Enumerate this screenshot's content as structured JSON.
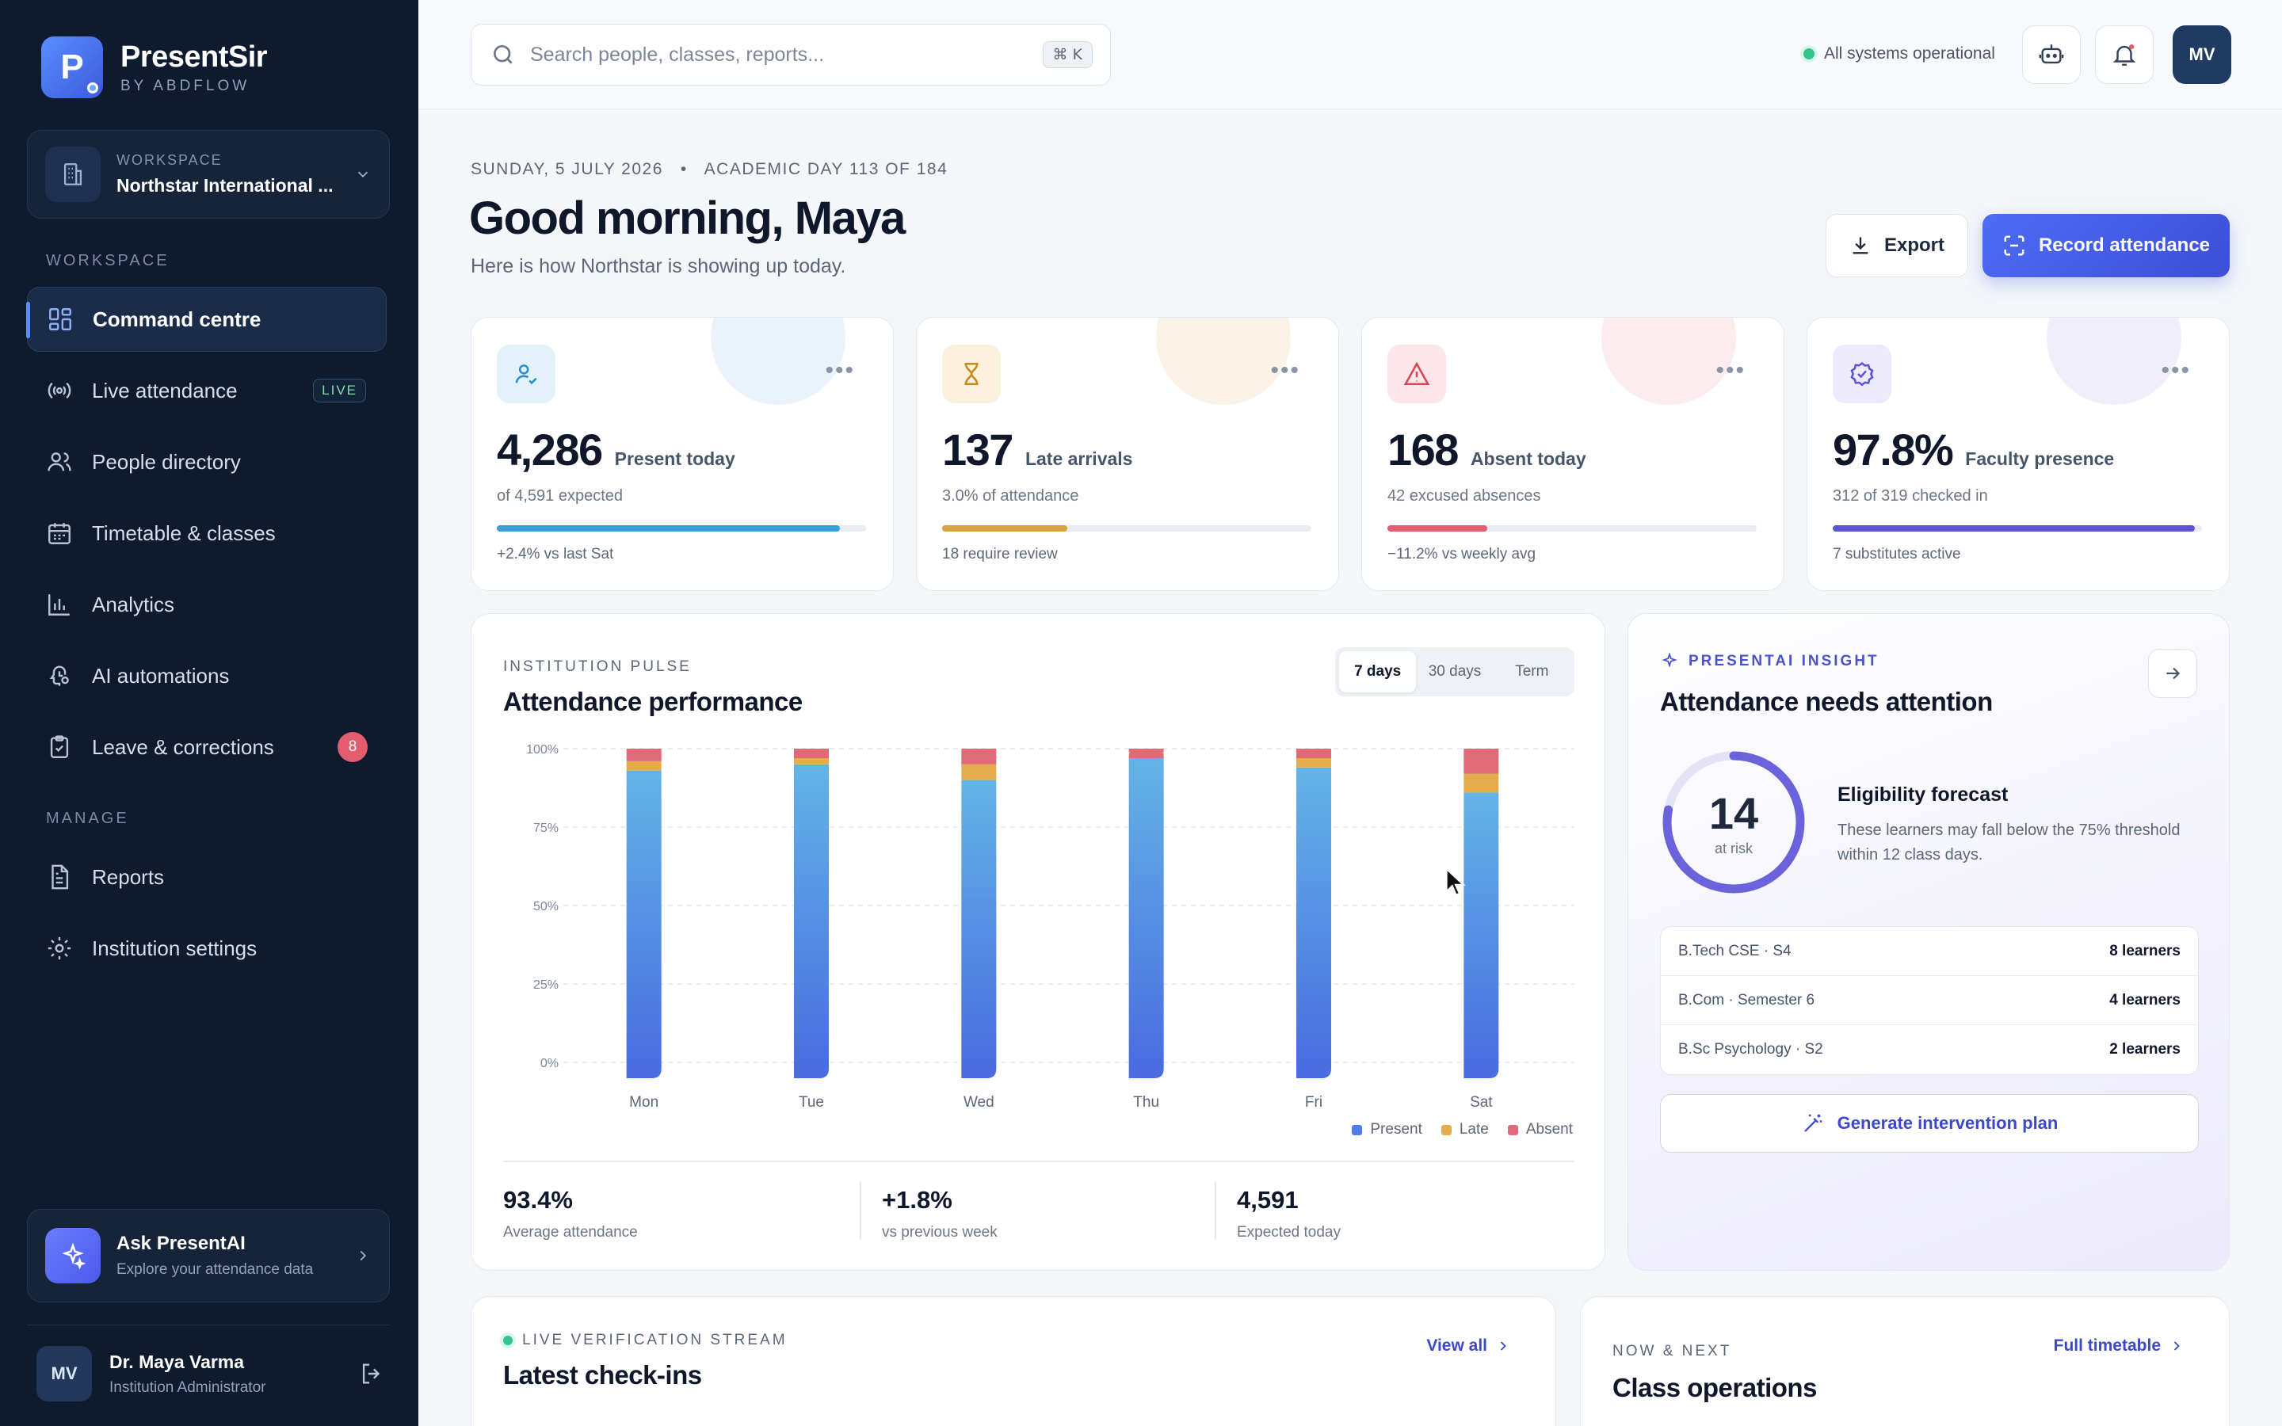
{
  "brand": {
    "name": "PresentSir",
    "sub": "BY ABDFLOW"
  },
  "workspace": {
    "label": "WORKSPACE",
    "name": "Northstar International ..."
  },
  "nav": {
    "section_workspace": "WORKSPACE",
    "section_manage": "MANAGE",
    "items": [
      {
        "label": "Command centre",
        "icon": "grid-icon",
        "active": true
      },
      {
        "label": "Live attendance",
        "icon": "broadcast-icon",
        "badge": "LIVE"
      },
      {
        "label": "People directory",
        "icon": "people-icon"
      },
      {
        "label": "Timetable & classes",
        "icon": "calendar-icon"
      },
      {
        "label": "Analytics",
        "icon": "bar-chart-icon"
      },
      {
        "label": "AI automations",
        "icon": "brain-icon"
      },
      {
        "label": "Leave & corrections",
        "icon": "clipboard-icon",
        "count": "8"
      }
    ],
    "manage_items": [
      {
        "label": "Reports",
        "icon": "document-icon"
      },
      {
        "label": "Institution settings",
        "icon": "gear-icon"
      }
    ]
  },
  "ask": {
    "title": "Ask PresentAI",
    "sub": "Explore your attendance data"
  },
  "user": {
    "initials": "MV",
    "name": "Dr. Maya Varma",
    "role": "Institution Administrator"
  },
  "topbar": {
    "search_placeholder": "Search people, classes, reports...",
    "shortcut": "⌘ K",
    "status": "All systems operational",
    "avatar": "MV"
  },
  "header": {
    "date": "SUNDAY, 5 JULY 2026",
    "academic_day": "ACADEMIC DAY 113 OF 184",
    "greeting": "Good morning, Maya",
    "sub": "Here is how Northstar is showing up today.",
    "export_label": "Export",
    "record_label": "Record attendance"
  },
  "stats": [
    {
      "value": "4,286",
      "label": "Present today",
      "sub": "of 4,591 expected",
      "foot": "+2.4% vs last Sat",
      "progress": 0.93,
      "color": "#3aa0d8",
      "icon": "user-check-icon"
    },
    {
      "value": "137",
      "label": "Late arrivals",
      "sub": "3.0% of attendance",
      "foot": "18 require review",
      "progress": 0.34,
      "color": "#d9a23e",
      "icon": "hourglass-icon"
    },
    {
      "value": "168",
      "label": "Absent today",
      "sub": "42 excused absences",
      "foot": "−11.2% vs weekly avg",
      "progress": 0.27,
      "color": "#e25d6d",
      "icon": "warning-icon"
    },
    {
      "value": "97.8%",
      "label": "Faculty presence",
      "sub": "312 of 319 checked in",
      "foot": "7 substitutes active",
      "progress": 0.98,
      "color": "#5b55d6",
      "icon": "badge-check-icon"
    }
  ],
  "chart": {
    "eyebrow": "INSTITUTION PULSE",
    "title": "Attendance performance",
    "ranges": [
      "7 days",
      "30 days",
      "Term"
    ],
    "active_range": "7 days",
    "summary": [
      {
        "value": "93.4%",
        "label": "Average attendance"
      },
      {
        "value": "+1.8%",
        "label": "vs previous week"
      },
      {
        "value": "4,591",
        "label": "Expected today"
      }
    ]
  },
  "chart_data": {
    "type": "bar",
    "stacked": true,
    "categories": [
      "Mon",
      "Tue",
      "Wed",
      "Thu",
      "Fri",
      "Sat"
    ],
    "series": [
      {
        "name": "Present",
        "values": [
          93,
          95,
          90,
          97,
          94,
          86
        ],
        "color": "#4f7fe6"
      },
      {
        "name": "Late",
        "values": [
          3,
          3,
          5,
          2,
          3,
          6
        ],
        "color": "#e3ad4b"
      },
      {
        "name": "Absent",
        "values": [
          4,
          2,
          5,
          1,
          3,
          8
        ],
        "color": "#e06a78"
      }
    ],
    "yticks": [
      "0%",
      "25%",
      "50%",
      "75%",
      "100%"
    ],
    "ylim": [
      0,
      100
    ],
    "grid": true,
    "legend": "bottom-right"
  },
  "insight": {
    "eyebrow": "PRESENTAI INSIGHT",
    "title": "Attendance needs attention",
    "at_risk": "14",
    "at_risk_label": "at risk",
    "forecast_title": "Eligibility forecast",
    "forecast_text": "These learners may fall below the 75% threshold within 12 class days.",
    "rows": [
      {
        "cohort": "B.Tech CSE · S4",
        "count": "8 learners"
      },
      {
        "cohort": "B.Com · Semester 6",
        "count": "4 learners"
      },
      {
        "cohort": "B.Sc Psychology · S2",
        "count": "2 learners"
      }
    ],
    "plan_label": "Generate intervention plan",
    "ring_progress": 0.78
  },
  "checkins": {
    "eyebrow": "LIVE VERIFICATION STREAM",
    "title": "Latest check-ins",
    "link": "View all"
  },
  "classes": {
    "eyebrow": "NOW & NEXT",
    "title": "Class operations",
    "link": "Full timetable"
  },
  "colors": {
    "sidebar": "#0e1a2d",
    "accent": "#4e6cf5"
  }
}
